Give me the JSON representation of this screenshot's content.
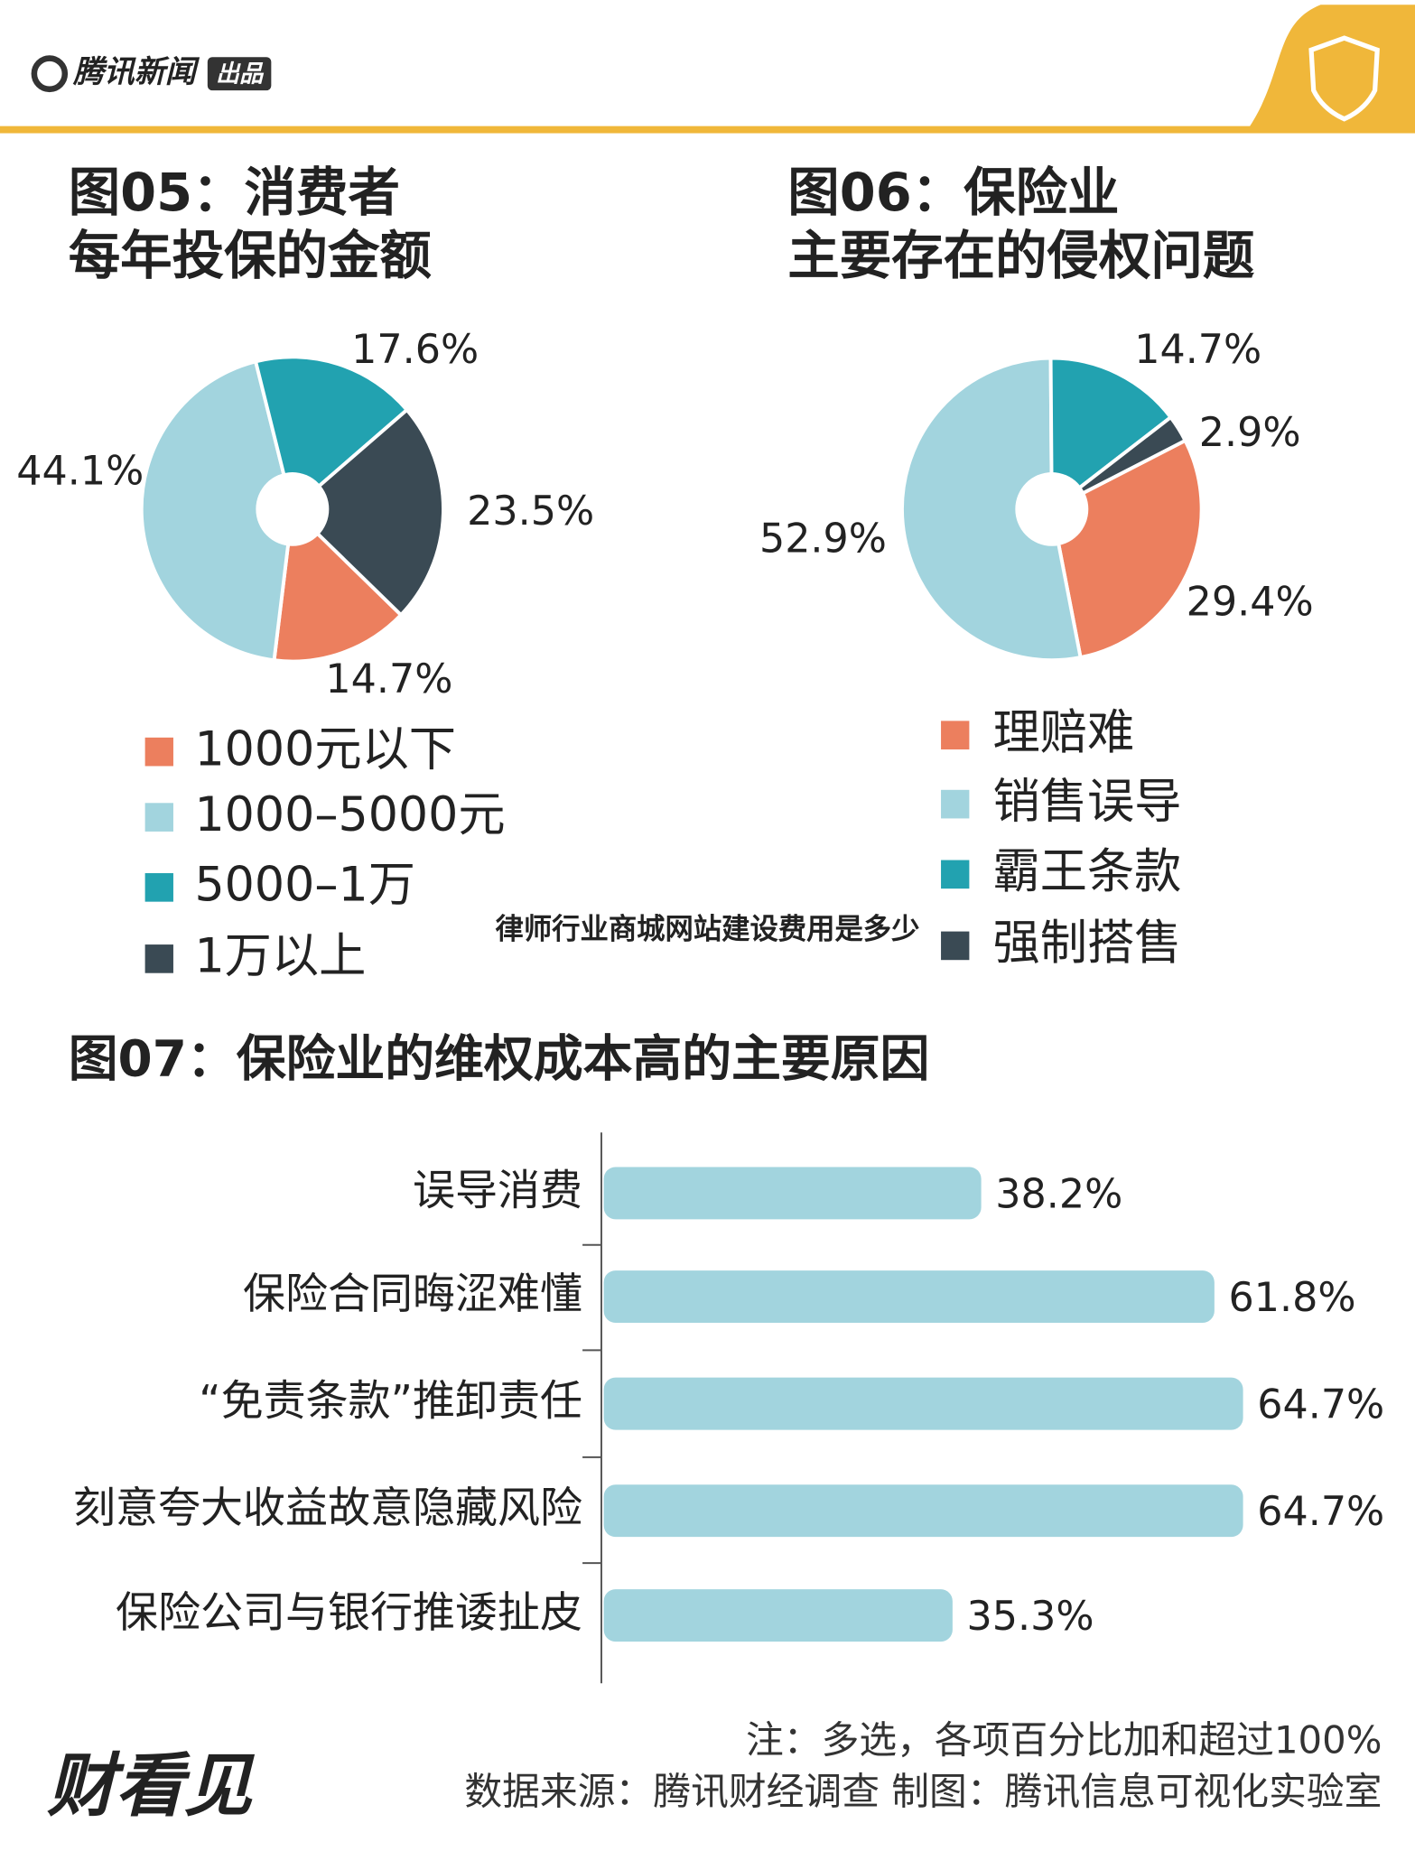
{
  "header": {
    "brand": "腾讯新闻",
    "brand_tag": "出品"
  },
  "chart_data": [
    {
      "type": "pie",
      "title": [
        "图05：消费者",
        "每年投保的金额"
      ],
      "categories": [
        "1000元以下",
        "1000–5000元",
        "5000–1万",
        "1万以上"
      ],
      "values": [
        14.7,
        44.1,
        17.6,
        23.5
      ],
      "value_labels": [
        "14.7%",
        "44.1%",
        "17.6%",
        "23.5%"
      ],
      "colors": [
        "#ec7f5e",
        "#a2d4de",
        "#22a2b0",
        "#3a4a54"
      ]
    },
    {
      "type": "pie",
      "title": [
        "图06：保险业",
        "主要存在的侵权问题"
      ],
      "categories": [
        "理赔难",
        "销售误导",
        "霸王条款",
        "强制搭售"
      ],
      "values": [
        29.4,
        52.9,
        14.7,
        2.9
      ],
      "value_labels": [
        "29.4%",
        "52.9%",
        "14.7%",
        "2.9%"
      ],
      "colors": [
        "#ec7f5e",
        "#a2d4de",
        "#22a2b0",
        "#3a4a54"
      ]
    },
    {
      "type": "hbar",
      "title": "图07：保险业的维权成本高的主要原因",
      "categories": [
        "误导消费",
        "保险合同晦涩难懂",
        "“免责条款”推卸责任",
        "刻意夸大收益故意隐藏风险",
        "保险公司与银行推诿扯皮"
      ],
      "values": [
        38.2,
        61.8,
        64.7,
        64.7,
        35.3
      ],
      "value_labels": [
        "38.2%",
        "61.8%",
        "64.7%",
        "64.7%",
        "35.3%"
      ],
      "color": "#a2d4de"
    }
  ],
  "overlay_text": "律师行业商城网站建设费用是多少",
  "footer": {
    "logo": "财看见",
    "note": "注：多选，各项百分比加和超过100%",
    "source": "数据来源：腾讯财经调查 制图：腾讯信息可视化实验室"
  }
}
